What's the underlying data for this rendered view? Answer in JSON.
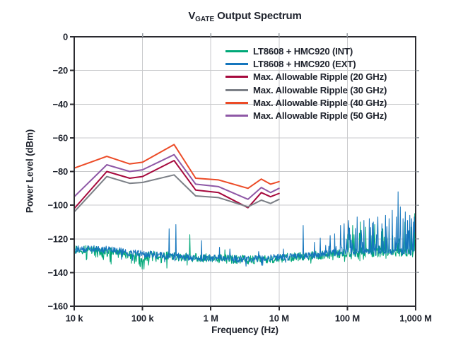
{
  "title": {
    "main": "V",
    "subscript": "GATE",
    "rest": " Output Spectrum"
  },
  "axes": {
    "x": {
      "label": "Frequency (Hz)",
      "scale": "log",
      "tick_labels": [
        "10 k",
        "100 k",
        "1 M",
        "10 M",
        "100 M",
        "1,000 M"
      ],
      "tick_values": [
        10000,
        100000,
        1000000,
        10000000,
        100000000,
        1000000000
      ]
    },
    "y": {
      "label": "Power Level (dBm)",
      "tick_labels": [
        "0",
        "−20",
        "−40",
        "−60",
        "−80",
        "−100",
        "−120",
        "−140",
        "−160"
      ],
      "tick_values": [
        0,
        -20,
        -40,
        -60,
        -80,
        -100,
        -120,
        -140,
        -160
      ]
    }
  },
  "colors": {
    "text": "#20242e",
    "grid": "#c9cacc",
    "border": "#2b2b30",
    "minor_tick": "#9aa0a6",
    "background": "#ffffff"
  },
  "chart_data": {
    "type": "line",
    "xscale": "log",
    "xlim": [
      10000,
      1000000000
    ],
    "ylim": [
      -160,
      0
    ],
    "title": "V GATE Output Spectrum",
    "xlabel": "Frequency (Hz)",
    "ylabel": "Power Level (dBm)",
    "grid": true,
    "legend_position": "top-right",
    "series": [
      {
        "name": "LT8608 + HMC920 (INT)",
        "color": "#00a878",
        "kind": "noise",
        "seed": 13,
        "jitter": 2.6,
        "baseline": [
          [
            10000,
            -126
          ],
          [
            30000,
            -127.5
          ],
          [
            70000,
            -129
          ],
          [
            100000,
            -132
          ],
          [
            130000,
            -129.5
          ],
          [
            300000,
            -130.5
          ],
          [
            1000000,
            -131.5
          ],
          [
            4000000,
            -132.5
          ],
          [
            10000000,
            -131.5
          ],
          [
            30000000,
            -130
          ],
          [
            100000000,
            -128.5
          ],
          [
            400000000,
            -128
          ],
          [
            1000000000,
            -127.5
          ]
        ],
        "zones": [
          {
            "from": 15000,
            "to": 250000,
            "prob": 0.2,
            "max": 6,
            "dir": -1
          },
          {
            "from": 100000000,
            "to": 1000000000,
            "prob": 0.25,
            "max": 14,
            "dir": 1
          }
        ],
        "spikes": [
          [
            92000,
            -136
          ],
          [
            105000,
            -138
          ],
          [
            490000,
            -117.5
          ],
          [
            1600000,
            -126.5
          ],
          [
            120000000,
            -112
          ],
          [
            155000000,
            -110
          ],
          [
            185000000,
            -113
          ],
          [
            250000000,
            -111.5
          ],
          [
            330000000,
            -114
          ],
          [
            690000000,
            -110
          ],
          [
            860000000,
            -113
          ],
          [
            975000000,
            -105
          ]
        ]
      },
      {
        "name": "LT8608 + HMC920 (EXT)",
        "color": "#1576bd",
        "kind": "noise",
        "seed": 29,
        "jitter": 2.2,
        "baseline": [
          [
            10000,
            -125.5
          ],
          [
            30000,
            -126.5
          ],
          [
            100000,
            -129
          ],
          [
            300000,
            -130.5
          ],
          [
            1000000,
            -131.5
          ],
          [
            4000000,
            -132
          ],
          [
            10000000,
            -131
          ],
          [
            20000000,
            -130.5
          ],
          [
            50000000,
            -129
          ],
          [
            100000000,
            -127.5
          ],
          [
            1000000000,
            -127.5
          ]
        ],
        "zones": [
          {
            "from": 25000000,
            "to": 80000000,
            "prob": 0.12,
            "max": 8,
            "dir": 1
          },
          {
            "from": 80000000,
            "to": 1000000000,
            "prob": 0.32,
            "max": 16,
            "dir": 1
          }
        ],
        "spikes": [
          [
            245000,
            -114
          ],
          [
            310000,
            -111.5
          ],
          [
            730000,
            -121
          ],
          [
            1350000,
            -125
          ],
          [
            1900000,
            -126
          ],
          [
            5000000,
            -127.5
          ],
          [
            11500000,
            -126
          ],
          [
            22500000,
            -112
          ],
          [
            33000000,
            -122
          ],
          [
            40000000,
            -119.5
          ],
          [
            56000000,
            -118
          ],
          [
            65000000,
            -117
          ],
          [
            80000000,
            -112
          ],
          [
            90000000,
            -111
          ],
          [
            105000000,
            -109
          ],
          [
            140000000,
            -107
          ],
          [
            175000000,
            -109
          ],
          [
            210000000,
            -108
          ],
          [
            240000000,
            -110
          ],
          [
            280000000,
            -107
          ],
          [
            320000000,
            -111
          ],
          [
            360000000,
            -106
          ],
          [
            410000000,
            -108
          ],
          [
            455000000,
            -103
          ],
          [
            520000000,
            -107
          ],
          [
            555000000,
            -92
          ],
          [
            600000000,
            -101
          ],
          [
            650000000,
            -108
          ],
          [
            710000000,
            -104
          ],
          [
            760000000,
            -109
          ],
          [
            820000000,
            -106
          ],
          [
            870000000,
            -108
          ],
          [
            920000000,
            -110
          ],
          [
            960000000,
            -107
          ]
        ]
      },
      {
        "name": "Max. Allowable Ripple (20 GHz)",
        "color": "#a6093d",
        "kind": "line",
        "points": [
          [
            10000,
            -102
          ],
          [
            30000,
            -80
          ],
          [
            65000,
            -84
          ],
          [
            100000,
            -83
          ],
          [
            290000,
            -73.5
          ],
          [
            600000,
            -91
          ],
          [
            1300000,
            -92.5
          ],
          [
            3500000,
            -101.5
          ],
          [
            5500000,
            -92.5
          ],
          [
            7500000,
            -95
          ],
          [
            10000000,
            -93
          ]
        ]
      },
      {
        "name": "Max. Allowable Ripple (30 GHz)",
        "color": "#7c8087",
        "kind": "line",
        "points": [
          [
            10000,
            -104
          ],
          [
            30000,
            -83
          ],
          [
            65000,
            -87
          ],
          [
            100000,
            -86.5
          ],
          [
            290000,
            -82
          ],
          [
            600000,
            -94.5
          ],
          [
            1300000,
            -95.5
          ],
          [
            3500000,
            -101
          ],
          [
            5500000,
            -97
          ],
          [
            7500000,
            -99
          ],
          [
            10000000,
            -96.5
          ]
        ]
      },
      {
        "name": "Max. Allowable Ripple (40 GHz)",
        "color": "#ec4b27",
        "kind": "line",
        "points": [
          [
            10000,
            -78
          ],
          [
            30000,
            -71
          ],
          [
            65000,
            -75.5
          ],
          [
            100000,
            -74.5
          ],
          [
            290000,
            -64
          ],
          [
            600000,
            -84
          ],
          [
            1300000,
            -85
          ],
          [
            3500000,
            -90
          ],
          [
            5500000,
            -84.5
          ],
          [
            7500000,
            -87.5
          ],
          [
            10000000,
            -86
          ]
        ]
      },
      {
        "name": "Max. Allowable Ripple (50 GHz)",
        "color": "#8e58a6",
        "kind": "line",
        "points": [
          [
            10000,
            -95
          ],
          [
            30000,
            -76
          ],
          [
            65000,
            -80
          ],
          [
            100000,
            -79
          ],
          [
            290000,
            -70
          ],
          [
            600000,
            -87.5
          ],
          [
            1300000,
            -89
          ],
          [
            3500000,
            -96.5
          ],
          [
            5500000,
            -89.5
          ],
          [
            7500000,
            -92.5
          ],
          [
            10000000,
            -90
          ]
        ]
      }
    ]
  }
}
